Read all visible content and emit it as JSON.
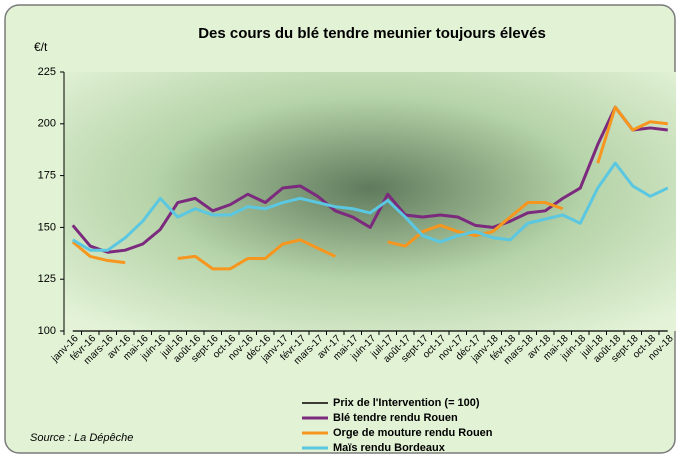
{
  "chart_data": {
    "type": "line",
    "title": "Des cours du blé tendre meunier toujours élevés",
    "y_label": "€/t",
    "annotation": "Source : La Dépêche",
    "categories": [
      "janv-16",
      "févr-16",
      "mars-16",
      "avr-16",
      "mai-16",
      "juin-16",
      "juil-16",
      "août-16",
      "sept-16",
      "oct-16",
      "nov-16",
      "déc-16",
      "janv-17",
      "févr-17",
      "mars-17",
      "avr-17",
      "mai-17",
      "juin-17",
      "juil-17",
      "août-17",
      "sept-17",
      "oct-17",
      "nov-17",
      "déc-17",
      "janv-18",
      "févr-18",
      "mars-18",
      "avr-18",
      "mai-18",
      "juin-18",
      "juil-18",
      "août-18",
      "sept-18",
      "oct-18",
      "nov-18"
    ],
    "series": [
      {
        "name": "Prix de l'Intervention (= 100)",
        "color": "#000000",
        "values": [
          100,
          100,
          100,
          100,
          100,
          100,
          100,
          100,
          100,
          100,
          100,
          100,
          100,
          100,
          100,
          100,
          100,
          100,
          100,
          100,
          100,
          100,
          100,
          100,
          100,
          100,
          100,
          100,
          100,
          100,
          100,
          100,
          100,
          100,
          100
        ]
      },
      {
        "name": "Blé tendre rendu Rouen",
        "color": "#7b2a7d",
        "values": [
          151,
          141,
          138,
          139,
          142,
          149,
          162,
          164,
          158,
          161,
          166,
          162,
          169,
          170,
          165,
          158,
          155,
          150,
          166,
          156,
          155,
          156,
          155,
          151,
          150,
          153,
          157,
          158,
          164,
          169,
          190,
          208,
          197,
          198,
          197
        ]
      },
      {
        "name": "Orge de mouture rendu Rouen",
        "color": "#f7961e",
        "values": [
          143,
          136,
          134,
          133,
          null,
          null,
          135,
          136,
          130,
          130,
          135,
          135,
          142,
          144,
          140,
          136,
          null,
          null,
          143,
          141,
          148,
          151,
          148,
          146,
          148,
          155,
          162,
          162,
          159,
          null,
          181,
          208,
          197,
          201,
          200
        ]
      },
      {
        "name": "Maïs rendu Bordeaux",
        "color": "#5bc7e0",
        "values": [
          144,
          139,
          139,
          145,
          153,
          164,
          155,
          159,
          156,
          156,
          160,
          159,
          162,
          164,
          162,
          160,
          159,
          157,
          163,
          155,
          146,
          143,
          146,
          148,
          145,
          144,
          152,
          154,
          156,
          152,
          169,
          181,
          170,
          165,
          169
        ]
      }
    ],
    "ylim": [
      100,
      225
    ],
    "yticks": [
      100,
      125,
      150,
      175,
      200,
      225
    ],
    "grid": false
  }
}
